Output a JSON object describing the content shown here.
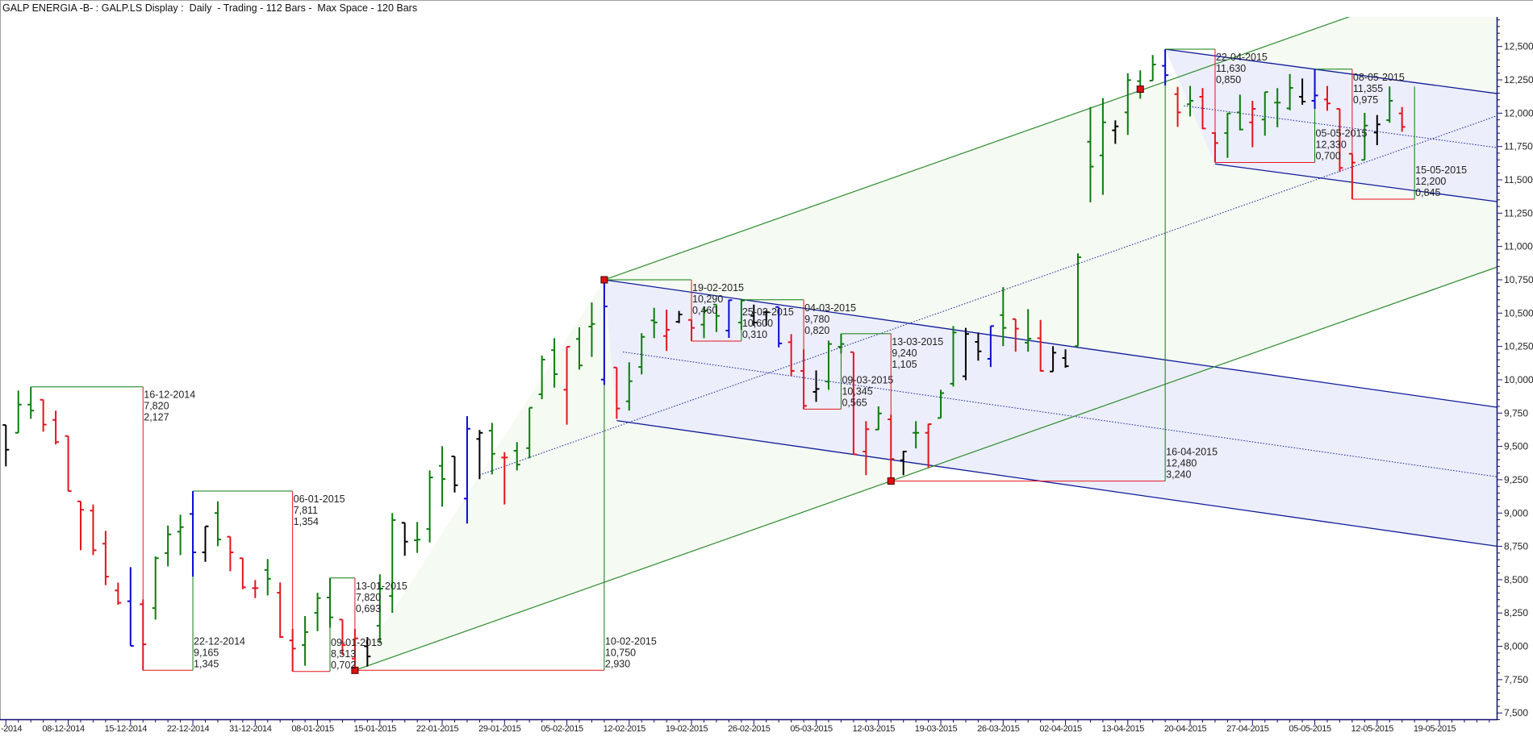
{
  "title": "GALP ENERGIA -B- : GALP.LS Display :  Daily  - Trading - 112 Bars -  Max Space - 120 Bars",
  "chart_data": {
    "type": "ohlc",
    "ylim": [
      7450,
      12720
    ],
    "yticks": [
      12500,
      12250,
      12000,
      11750,
      11500,
      11250,
      11000,
      10750,
      10500,
      10250,
      10000,
      9750,
      9500,
      9250,
      9000,
      8750,
      8500,
      8250,
      8000,
      7750,
      7500
    ],
    "ytick_labels": [
      "12,500",
      "12,250",
      "12,000",
      "11,750",
      "11,500",
      "11,250",
      "11,000",
      "10,750",
      "10,500",
      "10,250",
      "10,000",
      "9,750",
      "9,500",
      "9,250",
      "9,000",
      "8,750",
      "8,500",
      "8,250",
      "8,000",
      "7,750",
      "7,500"
    ],
    "xtick_labels": [
      "-2014",
      "08-12-2014",
      "15-12-2014",
      "22-12-2014",
      "31-12-2014",
      "08-01-2015",
      "15-01-2015",
      "22-01-2015",
      "29-01-2015",
      "05-02-2015",
      "12-02-2015",
      "19-02-2015",
      "26-02-2015",
      "05-03-2015",
      "12-03-2015",
      "19-03-2015",
      "26-03-2015",
      "02-04-2015",
      "13-04-2015",
      "20-04-2015",
      "27-04-2015",
      "05-05-2015",
      "12-05-2015",
      "19-05-2015"
    ],
    "colors": {
      "g": "#0c7c0c",
      "r": "#e4141c",
      "b": "#0a0ad2",
      "k": "#000000",
      "channel_fill": "#eceefb",
      "fork_fill": "#f5faf2",
      "fork_line": "#2a8a2a",
      "channel_line": "#101a9a",
      "marker": "#e01010"
    },
    "dates": [
      "01-12-2014",
      "02-12-2014",
      "03-12-2014",
      "04-12-2014",
      "05-12-2014",
      "08-12-2014",
      "09-12-2014",
      "10-12-2014",
      "11-12-2014",
      "12-12-2014",
      "15-12-2014",
      "16-12-2014",
      "17-12-2014",
      "18-12-2014",
      "19-12-2014",
      "22-12-2014",
      "23-12-2014",
      "24-12-2014",
      "29-12-2014",
      "30-12-2014",
      "31-12-2014",
      "02-01-2015",
      "05-01-2015",
      "06-01-2015",
      "07-01-2015",
      "08-01-2015",
      "09-01-2015",
      "12-01-2015",
      "13-01-2015",
      "14-01-2015",
      "15-01-2015",
      "16-01-2015",
      "19-01-2015",
      "20-01-2015",
      "21-01-2015",
      "22-01-2015",
      "23-01-2015",
      "26-01-2015",
      "27-01-2015",
      "28-01-2015",
      "29-01-2015",
      "30-01-2015",
      "02-02-2015",
      "03-02-2015",
      "04-02-2015",
      "05-02-2015",
      "06-02-2015",
      "09-02-2015",
      "10-02-2015",
      "11-02-2015",
      "12-02-2015",
      "13-02-2015",
      "16-02-2015",
      "17-02-2015",
      "18-02-2015",
      "19-02-2015",
      "20-02-2015",
      "23-02-2015",
      "24-02-2015",
      "25-02-2015",
      "26-02-2015",
      "27-02-2015",
      "02-03-2015",
      "03-03-2015",
      "04-03-2015",
      "05-03-2015",
      "06-03-2015",
      "09-03-2015",
      "10-03-2015",
      "11-03-2015",
      "12-03-2015",
      "13-03-2015",
      "16-03-2015",
      "17-03-2015",
      "18-03-2015",
      "19-03-2015",
      "20-03-2015",
      "23-03-2015",
      "24-03-2015",
      "25-03-2015",
      "26-03-2015",
      "27-03-2015",
      "30-03-2015",
      "31-03-2015",
      "01-04-2015",
      "02-04-2015",
      "07-04-2015",
      "08-04-2015",
      "09-04-2015",
      "10-04-2015",
      "13-04-2015",
      "14-04-2015",
      "15-04-2015",
      "16-04-2015",
      "17-04-2015",
      "20-04-2015",
      "21-04-2015",
      "22-04-2015",
      "23-04-2015",
      "24-04-2015",
      "27-04-2015",
      "28-04-2015",
      "29-04-2015",
      "30-04-2015",
      "04-05-2015",
      "05-05-2015",
      "06-05-2015",
      "07-05-2015",
      "08-05-2015",
      "11-05-2015",
      "12-05-2015",
      "13-05-2015",
      "14-05-2015",
      "15-05-2015"
    ],
    "ohlc": [
      [
        9660,
        9660,
        9350,
        9475,
        "k"
      ],
      [
        9602,
        9919,
        9602,
        9814,
        "g"
      ],
      [
        9814,
        9947,
        9707,
        9768,
        "g"
      ],
      [
        9850,
        9850,
        9610,
        9663,
        "r"
      ],
      [
        9699,
        9768,
        9514,
        9532,
        "r"
      ],
      [
        9578,
        9578,
        9165,
        9165,
        "r"
      ],
      [
        9088,
        9088,
        8721,
        9024,
        "r"
      ],
      [
        9018,
        9064,
        8685,
        8721,
        "r"
      ],
      [
        8770,
        8866,
        8459,
        8523,
        "r"
      ],
      [
        8419,
        8479,
        8312,
        8326,
        "r"
      ],
      [
        8338,
        8594,
        8003,
        8003,
        "b"
      ],
      [
        8316,
        8352,
        7820,
        8015,
        "r"
      ],
      [
        8287,
        8674,
        8201,
        8661,
        "g"
      ],
      [
        8700,
        8906,
        8600,
        8840,
        "g"
      ],
      [
        8860,
        8987,
        8685,
        8894,
        "g"
      ],
      [
        8993,
        9165,
        8523,
        8705,
        "b"
      ],
      [
        8705,
        8900,
        8634,
        8900,
        "k"
      ],
      [
        9000,
        9088,
        8751,
        8802,
        "g"
      ],
      [
        8822,
        8822,
        8564,
        8705,
        "r"
      ],
      [
        8661,
        8661,
        8428,
        8443,
        "r"
      ],
      [
        8437,
        8497,
        8362,
        8437,
        "r"
      ],
      [
        8573,
        8655,
        8382,
        8507,
        "g"
      ],
      [
        8402,
        8479,
        8063,
        8070,
        "r"
      ],
      [
        8044,
        8130,
        7811,
        7983,
        "r"
      ],
      [
        8009,
        8227,
        7854,
        8107,
        "g"
      ],
      [
        8251,
        8402,
        8114,
        8362,
        "g"
      ],
      [
        8366,
        8513,
        8140,
        8217,
        "g"
      ],
      [
        8201,
        8201,
        7935,
        8009,
        "r"
      ],
      [
        7908,
        8130,
        7820,
        8059,
        "r"
      ],
      [
        8000,
        8069,
        7848,
        7924,
        "k"
      ],
      [
        8154,
        8540,
        8023,
        8433,
        "g"
      ],
      [
        8378,
        9000,
        8251,
        8947,
        "g"
      ],
      [
        8927,
        8927,
        8679,
        8785,
        "k"
      ],
      [
        8796,
        8933,
        8701,
        8800,
        "g"
      ],
      [
        8880,
        9320,
        8779,
        9267,
        "g"
      ],
      [
        9354,
        9501,
        9048,
        9255,
        "g"
      ],
      [
        9425,
        9425,
        9154,
        9209,
        "k"
      ],
      [
        9108,
        9727,
        8921,
        9632,
        "b"
      ],
      [
        9556,
        9623,
        9254,
        9602,
        "k"
      ],
      [
        9618,
        9677,
        9290,
        9445,
        "g"
      ],
      [
        9417,
        9457,
        9064,
        9417,
        "r"
      ],
      [
        9467,
        9532,
        9320,
        9364,
        "g"
      ],
      [
        9487,
        9790,
        9411,
        9790,
        "g"
      ],
      [
        9891,
        10181,
        9854,
        10151,
        "g"
      ],
      [
        10222,
        10312,
        9941,
        10042,
        "g"
      ],
      [
        9925,
        10248,
        9663,
        10248,
        "r"
      ],
      [
        10306,
        10394,
        10076,
        10107,
        "g"
      ],
      [
        10399,
        10580,
        10171,
        10419,
        "g"
      ],
      [
        10001,
        10750,
        9961,
        10550,
        "b"
      ],
      [
        10092,
        10092,
        9707,
        9784,
        "r"
      ],
      [
        9838,
        10131,
        9768,
        9989,
        "g"
      ],
      [
        10096,
        10349,
        10040,
        10322,
        "g"
      ],
      [
        10445,
        10540,
        10312,
        10430,
        "g"
      ],
      [
        10328,
        10526,
        10217,
        10375,
        "r"
      ],
      [
        10435,
        10516,
        10425,
        10490,
        "k"
      ],
      [
        10449,
        10449,
        10290,
        10389,
        "r"
      ],
      [
        10413,
        10550,
        10312,
        10520,
        "g"
      ],
      [
        10564,
        10564,
        10358,
        10479,
        "g"
      ],
      [
        10369,
        10600,
        10314,
        10597,
        "b"
      ],
      [
        10429,
        10600,
        10373,
        10594,
        "g"
      ],
      [
        10479,
        10564,
        10405,
        10429,
        "k"
      ],
      [
        10506,
        10520,
        10405,
        10506,
        "k"
      ],
      [
        10546,
        10546,
        10243,
        10273,
        "b"
      ],
      [
        10282,
        10342,
        10026,
        10066,
        "r"
      ],
      [
        10066,
        10228,
        9780,
        9804,
        "r"
      ],
      [
        9909,
        10070,
        9834,
        9931,
        "k"
      ],
      [
        9986,
        10294,
        9925,
        10268,
        "g"
      ],
      [
        10247,
        10345,
        10197,
        10268,
        "g"
      ],
      [
        10207,
        10207,
        9441,
        9441,
        "r"
      ],
      [
        9461,
        9689,
        9284,
        9629,
        "r"
      ],
      [
        9626,
        9800,
        9623,
        9747,
        "g"
      ],
      [
        9703,
        9738,
        9240,
        9405,
        "r"
      ],
      [
        9396,
        9467,
        9284,
        9461,
        "k"
      ],
      [
        9602,
        9689,
        9485,
        9602,
        "g"
      ],
      [
        9602,
        9669,
        9340,
        9667,
        "r"
      ],
      [
        9713,
        9925,
        9713,
        9900,
        "g"
      ],
      [
        9970,
        10403,
        9949,
        10354,
        "g"
      ],
      [
        10026,
        10389,
        9997,
        10344,
        "k"
      ],
      [
        10284,
        10354,
        10143,
        10213,
        "k"
      ],
      [
        10157,
        10403,
        10096,
        10403,
        "b"
      ],
      [
        10485,
        10695,
        10252,
        10389,
        "g"
      ],
      [
        10455,
        10455,
        10211,
        10383,
        "r"
      ],
      [
        10278,
        10530,
        10211,
        10308,
        "g"
      ],
      [
        10312,
        10449,
        10062,
        10066,
        "r"
      ],
      [
        10062,
        10252,
        10062,
        10203,
        "k"
      ],
      [
        10163,
        10228,
        10090,
        10102,
        "k"
      ],
      [
        10252,
        10948,
        10252,
        10919,
        "g"
      ],
      [
        11786,
        12047,
        11331,
        11599,
        "g"
      ],
      [
        11683,
        12113,
        11387,
        11931,
        "g"
      ],
      [
        11871,
        11946,
        11770,
        11901,
        "k"
      ],
      [
        12006,
        12299,
        11837,
        12248,
        "g"
      ],
      [
        12240,
        12321,
        12109,
        12180,
        "g"
      ],
      [
        12244,
        12436,
        12244,
        12365,
        "g"
      ],
      [
        12355,
        12480,
        12208,
        12285,
        "b"
      ],
      [
        12143,
        12197,
        11897,
        12006,
        "r"
      ],
      [
        12067,
        12204,
        11976,
        12093,
        "g"
      ],
      [
        12123,
        12188,
        11881,
        11885,
        "r"
      ],
      [
        11851,
        11857,
        11630,
        11776,
        "r"
      ],
      [
        11851,
        12002,
        11665,
        11998,
        "g"
      ],
      [
        12006,
        12139,
        11871,
        11877,
        "g"
      ],
      [
        11931,
        12093,
        11744,
        12032,
        "r"
      ],
      [
        11952,
        12159,
        11831,
        12159,
        "g"
      ],
      [
        12079,
        12188,
        11895,
        12079,
        "g"
      ],
      [
        12036,
        12294,
        12022,
        12190,
        "g"
      ],
      [
        12123,
        12260,
        12063,
        12087,
        "k"
      ],
      [
        12093,
        12330,
        12032,
        12133,
        "b"
      ],
      [
        12103,
        12204,
        12018,
        12073,
        "r"
      ],
      [
        12032,
        12032,
        11559,
        11589,
        "r"
      ],
      [
        11695,
        11695,
        11355,
        11629,
        "r"
      ],
      [
        11649,
        12002,
        11649,
        11907,
        "g"
      ],
      [
        11855,
        11986,
        11760,
        11916,
        "k"
      ],
      [
        11948,
        12200,
        11928,
        12093,
        "g"
      ],
      [
        11998,
        12046,
        11861,
        11897,
        "r"
      ]
    ],
    "swing_start": {
      "date": "03-12-2014",
      "price": 9947
    },
    "swings": [
      {
        "date": "16-12-2014",
        "price": 7820,
        "price_label": "7,820",
        "diff": "2,127",
        "type": "low"
      },
      {
        "date": "22-12-2014",
        "price": 9165,
        "price_label": "9,165",
        "diff": "1,345",
        "type": "high"
      },
      {
        "date": "06-01-2015",
        "price": 7811,
        "price_label": "7,811",
        "diff": "1,354",
        "type": "low"
      },
      {
        "date": "09-01-2015",
        "price": 8513,
        "price_label": "8,513",
        "diff": "0,702",
        "type": "high"
      },
      {
        "date": "13-01-2015",
        "price": 7820,
        "price_label": "7,820",
        "diff": "0,693",
        "type": "low"
      },
      {
        "date": "10-02-2015",
        "price": 10750,
        "price_label": "10,750",
        "diff": "2,930",
        "type": "high"
      },
      {
        "date": "19-02-2015",
        "price": 10290,
        "price_label": "10,290",
        "diff": "0,460",
        "type": "low"
      },
      {
        "date": "25-02-2015",
        "price": 10600,
        "price_label": "10,600",
        "diff": "0,310",
        "type": "high"
      },
      {
        "date": "04-03-2015",
        "price": 9780,
        "price_label": "9,780",
        "diff": "0,820",
        "type": "low"
      },
      {
        "date": "09-03-2015",
        "price": 10345,
        "price_label": "10,345",
        "diff": "0,565",
        "type": "high"
      },
      {
        "date": "13-03-2015",
        "price": 9240,
        "price_label": "9,240",
        "diff": "1,105",
        "type": "low"
      },
      {
        "date": "16-04-2015",
        "price": 12480,
        "price_label": "12,480",
        "diff": "3,240",
        "type": "high"
      },
      {
        "date": "22-04-2015",
        "price": 11630,
        "price_label": "11,630",
        "diff": "0,850",
        "type": "low"
      },
      {
        "date": "05-05-2015",
        "price": 12330,
        "price_label": "12,330",
        "diff": "0,700",
        "type": "high"
      },
      {
        "date": "08-05-2015",
        "price": 11355,
        "price_label": "11,355",
        "diff": "0,975",
        "type": "low"
      },
      {
        "date": "15-05-2015",
        "price": 12200,
        "price_label": "12,200",
        "diff": "0,845",
        "type": "high"
      }
    ],
    "pitchfork": {
      "low_anchor": {
        "date": "13-01-2015",
        "price": 7820
      },
      "high_anchor": {
        "date": "10-02-2015",
        "price": 10750
      },
      "slope_through": {
        "date": "13-03-2015",
        "price": 9240
      }
    },
    "channels": [
      {
        "start": "10-02-2015",
        "upper": [
          [
            "10-02-2015",
            10750
          ],
          [
            "15-05-2015",
            9882
          ]
        ],
        "lower_start": "11-02-2015",
        "lower": [
          [
            "10-02-2015",
            9707
          ],
          [
            "15-05-2015",
            8839
          ]
        ]
      },
      {
        "start": "16-04-2015",
        "upper": [
          [
            "16-04-2015",
            12480
          ],
          [
            "15-05-2015",
            12230
          ]
        ],
        "lower_start": "22-04-2015",
        "lower": [
          [
            "22-04-2015",
            11619
          ],
          [
            "15-05-2015",
            11419
          ]
        ]
      }
    ],
    "markers": [
      {
        "date": "13-01-2015",
        "price": 7820
      },
      {
        "date": "10-02-2015",
        "price": 10750
      },
      {
        "date": "13-03-2015",
        "price": 9240
      },
      {
        "date": "14-04-2015",
        "price": 12180
      }
    ]
  }
}
